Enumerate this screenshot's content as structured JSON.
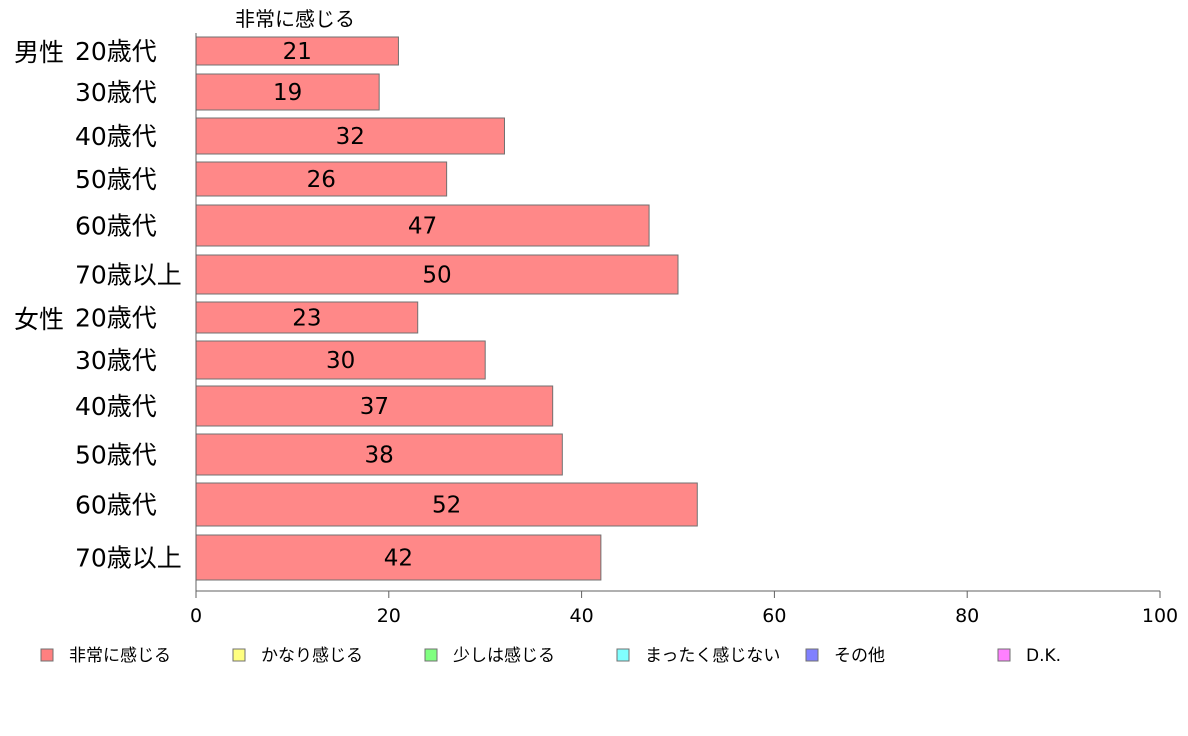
{
  "chart_data": {
    "type": "bar",
    "orientation": "horizontal",
    "column_header": "非常に感じる",
    "groups": [
      "男性",
      "女性"
    ],
    "categories": [
      "20歳代",
      "30歳代",
      "40歳代",
      "50歳代",
      "60歳代",
      "70歳以上",
      "20歳代",
      "30歳代",
      "40歳代",
      "50歳代",
      "60歳代",
      "70歳以上"
    ],
    "series": [
      {
        "name": "非常に感じる",
        "color": "#ff8888",
        "values": [
          21,
          19,
          32,
          26,
          47,
          50,
          23,
          30,
          37,
          38,
          52,
          42
        ]
      }
    ],
    "legend": [
      {
        "label": "非常に感じる",
        "color": "#ff8080"
      },
      {
        "label": "かなり感じる",
        "color": "#ffff80"
      },
      {
        "label": "少しは感じる",
        "color": "#80ff80"
      },
      {
        "label": "まったく感じない",
        "color": "#80ffff"
      },
      {
        "label": "その他",
        "color": "#8080ff"
      },
      {
        "label": "D.K.",
        "color": "#ff80ff"
      }
    ],
    "legend_position": "bottom",
    "xlim": [
      0,
      100
    ],
    "xticks": [
      0,
      20,
      40,
      60,
      80,
      100
    ],
    "grid": false,
    "bar_edge_color": "#707070",
    "axis_color": "#606060"
  }
}
